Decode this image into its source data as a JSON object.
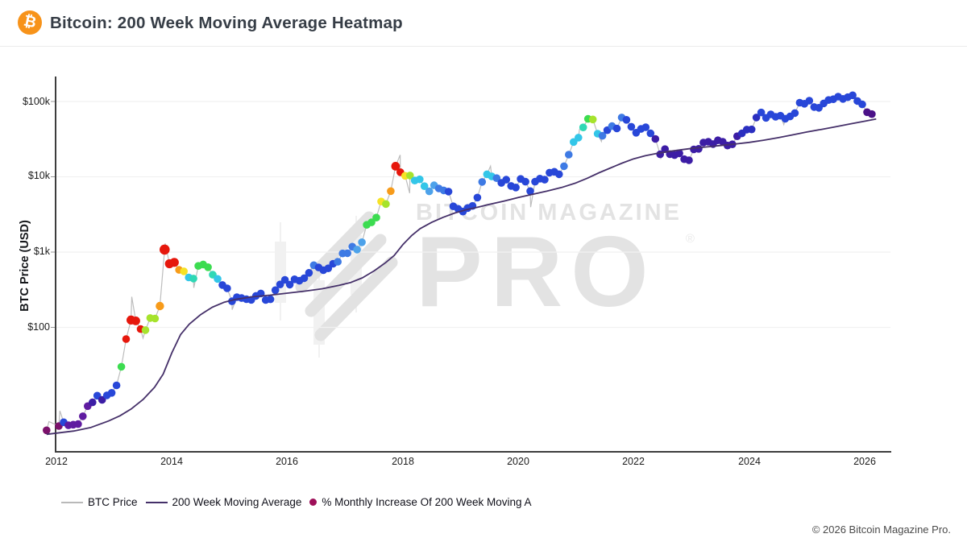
{
  "header": {
    "title": "Bitcoin: 200 Week Moving Average Heatmap",
    "logo_glyph": "₿",
    "brand_color": "#f7931a"
  },
  "watermark": {
    "line1": "BITCOIN MAGAZINE",
    "line2": "PRO",
    "reg": "®"
  },
  "footer": {
    "copyright": "© 2026 Bitcoin Magazine Pro."
  },
  "legend": {
    "items": [
      {
        "label": "BTC Price",
        "type": "line",
        "color": "#b9b9b9"
      },
      {
        "label": "200 Week Moving Average",
        "type": "line",
        "color": "#453069"
      },
      {
        "label": "% Monthly Increase Of 200 Week Moving A",
        "type": "dot",
        "color": "#9e1059"
      }
    ]
  },
  "chart_data": {
    "type": "scatter",
    "title": "Bitcoin: 200 Week Moving Average Heatmap",
    "ylabel": "BTC Price (USD)",
    "y_log": true,
    "grid": "horizontal-faint",
    "x_ticks": [
      "2012",
      "2014",
      "2016",
      "2018",
      "2020",
      "2022",
      "2024",
      "2026"
    ],
    "y_ticks": [
      "$100k",
      "$10k",
      "$1k",
      "$100"
    ],
    "y_tick_values": [
      100000,
      10000,
      1000,
      100
    ],
    "x_range": [
      2011.8,
      2026.45
    ],
    "colors": {
      "axis": "#3d3d3d",
      "grid": "#f1f1f1",
      "tick": "#9a9a9a",
      "btc_line": "#bdbdbd",
      "wma_line": "#453069",
      "palette": {
        "mg": "#7c116b",
        "dp": "#4b1188",
        "pu": "#5f1ba0",
        "in": "#3c1da5",
        "nv": "#2b2fc0",
        "b": "#2847d8",
        "lb": "#3e7ae4",
        "sk": "#4da2ea",
        "cy": "#33c6e8",
        "te": "#2fd8b5",
        "gr": "#3cdc50",
        "yg": "#a6e32c",
        "ye": "#f6e227",
        "or": "#f79b1a",
        "re": "#e6170c"
      }
    },
    "series_note": "btc_monthly tuples = [decimalYear, priceUSD, colorKey, optionalRadius]; color = % monthly increase of 200WMA heatmap",
    "btc_monthly": [
      [
        2011.83,
        4.3,
        "mg"
      ],
      [
        2012.042,
        4.9,
        "mg"
      ],
      [
        2012.125,
        5.5,
        "b"
      ],
      [
        2012.208,
        5.0,
        "pu"
      ],
      [
        2012.292,
        5.1,
        "pu"
      ],
      [
        2012.375,
        5.2,
        "pu"
      ],
      [
        2012.458,
        6.6,
        "pu"
      ],
      [
        2012.542,
        9.0,
        "pu"
      ],
      [
        2012.625,
        10.1,
        "in"
      ],
      [
        2012.708,
        12.4,
        "b"
      ],
      [
        2012.792,
        10.9,
        "in"
      ],
      [
        2012.875,
        12.5,
        "b"
      ],
      [
        2012.958,
        13.5,
        "b"
      ],
      [
        2013.042,
        17,
        "b"
      ],
      [
        2013.125,
        30,
        "gr"
      ],
      [
        2013.208,
        70,
        "re"
      ],
      [
        2013.292,
        125,
        "re",
        5.6
      ],
      [
        2013.375,
        122,
        "re",
        5.4
      ],
      [
        2013.458,
        95,
        "re"
      ],
      [
        2013.542,
        92,
        "yg"
      ],
      [
        2013.625,
        133,
        "yg"
      ],
      [
        2013.708,
        131,
        "yg"
      ],
      [
        2013.792,
        192,
        "or",
        5.2
      ],
      [
        2013.875,
        1080,
        "re",
        6.3
      ],
      [
        2013.958,
        700,
        "re",
        5.6
      ],
      [
        2014.042,
        730,
        "re",
        5.6
      ],
      [
        2014.125,
        580,
        "or"
      ],
      [
        2014.208,
        555,
        "ye"
      ],
      [
        2014.292,
        460,
        "cy"
      ],
      [
        2014.375,
        445,
        "te"
      ],
      [
        2014.458,
        655,
        "gr"
      ],
      [
        2014.542,
        685,
        "gr"
      ],
      [
        2014.625,
        630,
        "gr"
      ],
      [
        2014.708,
        500,
        "te"
      ],
      [
        2014.792,
        440,
        "cy"
      ],
      [
        2014.875,
        365,
        "b"
      ],
      [
        2014.958,
        330,
        "b"
      ],
      [
        2015.042,
        222,
        "b"
      ],
      [
        2015.125,
        252,
        "b"
      ],
      [
        2015.208,
        245,
        "b"
      ],
      [
        2015.292,
        237,
        "b"
      ],
      [
        2015.375,
        232,
        "b"
      ],
      [
        2015.458,
        262,
        "b"
      ],
      [
        2015.542,
        282,
        "b"
      ],
      [
        2015.625,
        231,
        "b"
      ],
      [
        2015.708,
        236,
        "b"
      ],
      [
        2015.792,
        312,
        "b"
      ],
      [
        2015.875,
        372,
        "b"
      ],
      [
        2015.958,
        428,
        "b"
      ],
      [
        2016.042,
        370,
        "b"
      ],
      [
        2016.125,
        435,
        "b"
      ],
      [
        2016.208,
        416,
        "b"
      ],
      [
        2016.292,
        450,
        "b"
      ],
      [
        2016.375,
        530,
        "b"
      ],
      [
        2016.458,
        670,
        "lb"
      ],
      [
        2016.542,
        625,
        "b"
      ],
      [
        2016.625,
        575,
        "b"
      ],
      [
        2016.708,
        608,
        "b"
      ],
      [
        2016.792,
        700,
        "b"
      ],
      [
        2016.875,
        745,
        "lb"
      ],
      [
        2016.958,
        960,
        "lb"
      ],
      [
        2017.042,
        965,
        "lb"
      ],
      [
        2017.125,
        1180,
        "lb"
      ],
      [
        2017.208,
        1080,
        "sk"
      ],
      [
        2017.292,
        1350,
        "sk"
      ],
      [
        2017.375,
        2300,
        "gr"
      ],
      [
        2017.458,
        2480,
        "gr"
      ],
      [
        2017.542,
        2870,
        "gr"
      ],
      [
        2017.625,
        4700,
        "ye"
      ],
      [
        2017.708,
        4350,
        "yg"
      ],
      [
        2017.792,
        6450,
        "or"
      ],
      [
        2017.875,
        13800,
        "re",
        5.4
      ],
      [
        2017.958,
        11500,
        "re"
      ],
      [
        2018.042,
        10300,
        "ye"
      ],
      [
        2018.125,
        10400,
        "yg"
      ],
      [
        2018.208,
        8900,
        "cy"
      ],
      [
        2018.292,
        9250,
        "cy"
      ],
      [
        2018.375,
        7500,
        "cy"
      ],
      [
        2018.458,
        6400,
        "sk"
      ],
      [
        2018.542,
        7700,
        "sk"
      ],
      [
        2018.625,
        7000,
        "lb"
      ],
      [
        2018.708,
        6600,
        "lb"
      ],
      [
        2018.792,
        6350,
        "b"
      ],
      [
        2018.875,
        4050,
        "b"
      ],
      [
        2018.958,
        3750,
        "b"
      ],
      [
        2019.042,
        3450,
        "b"
      ],
      [
        2019.125,
        3850,
        "b"
      ],
      [
        2019.208,
        4100,
        "b"
      ],
      [
        2019.292,
        5300,
        "b"
      ],
      [
        2019.375,
        8550,
        "lb"
      ],
      [
        2019.458,
        10800,
        "cy"
      ],
      [
        2019.542,
        10100,
        "cy"
      ],
      [
        2019.625,
        9600,
        "lb"
      ],
      [
        2019.708,
        8300,
        "b"
      ],
      [
        2019.792,
        9150,
        "b"
      ],
      [
        2019.875,
        7550,
        "b"
      ],
      [
        2019.958,
        7200,
        "b"
      ],
      [
        2020.042,
        9350,
        "b"
      ],
      [
        2020.125,
        8600,
        "b"
      ],
      [
        2020.208,
        6450,
        "b"
      ],
      [
        2020.292,
        8600,
        "b"
      ],
      [
        2020.375,
        9450,
        "b"
      ],
      [
        2020.458,
        9150,
        "b"
      ],
      [
        2020.542,
        11350,
        "b"
      ],
      [
        2020.625,
        11650,
        "b"
      ],
      [
        2020.708,
        10800,
        "b"
      ],
      [
        2020.792,
        13800,
        "lb"
      ],
      [
        2020.875,
        19700,
        "lb"
      ],
      [
        2020.958,
        29000,
        "cy"
      ],
      [
        2021.042,
        33100,
        "cy"
      ],
      [
        2021.125,
        45200,
        "te"
      ],
      [
        2021.208,
        58800,
        "gr"
      ],
      [
        2021.292,
        57800,
        "yg"
      ],
      [
        2021.375,
        37300,
        "cy"
      ],
      [
        2021.458,
        35000,
        "lb"
      ],
      [
        2021.542,
        41500,
        "b"
      ],
      [
        2021.625,
        47100,
        "lb"
      ],
      [
        2021.708,
        43800,
        "b"
      ],
      [
        2021.792,
        61300,
        "lb"
      ],
      [
        2021.875,
        57000,
        "b"
      ],
      [
        2021.958,
        46200,
        "b"
      ],
      [
        2022.042,
        38500,
        "b"
      ],
      [
        2022.125,
        43200,
        "b"
      ],
      [
        2022.208,
        45500,
        "b"
      ],
      [
        2022.292,
        37700,
        "b"
      ],
      [
        2022.375,
        31800,
        "in"
      ],
      [
        2022.458,
        19900,
        "in"
      ],
      [
        2022.542,
        23300,
        "in"
      ],
      [
        2022.625,
        20000,
        "in"
      ],
      [
        2022.708,
        19400,
        "in"
      ],
      [
        2022.792,
        20500,
        "in"
      ],
      [
        2022.875,
        17100,
        "in"
      ],
      [
        2022.958,
        16550,
        "in"
      ],
      [
        2023.042,
        23100,
        "in"
      ],
      [
        2023.125,
        23500,
        "in"
      ],
      [
        2023.208,
        28500,
        "in"
      ],
      [
        2023.292,
        29200,
        "in"
      ],
      [
        2023.375,
        27200,
        "in"
      ],
      [
        2023.458,
        30500,
        "in"
      ],
      [
        2023.542,
        29200,
        "in"
      ],
      [
        2023.625,
        26000,
        "in"
      ],
      [
        2023.708,
        27000,
        "in"
      ],
      [
        2023.792,
        34500,
        "in"
      ],
      [
        2023.875,
        37700,
        "nv"
      ],
      [
        2023.958,
        42300,
        "nv"
      ],
      [
        2024.042,
        42600,
        "nv"
      ],
      [
        2024.125,
        61200,
        "nv"
      ],
      [
        2024.208,
        71300,
        "b"
      ],
      [
        2024.292,
        60600,
        "b"
      ],
      [
        2024.375,
        67500,
        "b"
      ],
      [
        2024.458,
        62700,
        "b"
      ],
      [
        2024.542,
        64600,
        "b"
      ],
      [
        2024.625,
        59000,
        "b"
      ],
      [
        2024.708,
        63300,
        "b"
      ],
      [
        2024.792,
        70200,
        "b"
      ],
      [
        2024.875,
        96400,
        "b"
      ],
      [
        2024.958,
        93400,
        "b"
      ],
      [
        2025.042,
        102400,
        "b"
      ],
      [
        2025.125,
        84400,
        "b"
      ],
      [
        2025.208,
        82500,
        "b"
      ],
      [
        2025.292,
        94200,
        "b"
      ],
      [
        2025.375,
        104600,
        "b"
      ],
      [
        2025.458,
        107200,
        "b"
      ],
      [
        2025.542,
        116000,
        "b"
      ],
      [
        2025.625,
        108300,
        "b"
      ],
      [
        2025.708,
        114000,
        "b"
      ],
      [
        2025.792,
        121000,
        "b"
      ],
      [
        2025.875,
        101500,
        "b"
      ],
      [
        2025.958,
        91500,
        "b"
      ],
      [
        2026.042,
        72000,
        "dp"
      ],
      [
        2026.125,
        68000,
        "dp"
      ]
    ],
    "btc_wicks": [
      [
        2011.87,
        5.6
      ],
      [
        2012.06,
        7.8
      ],
      [
        2013.305,
        255
      ],
      [
        2013.5,
        72
      ],
      [
        2013.885,
        1300
      ],
      [
        2014.38,
        335
      ],
      [
        2015.045,
        172
      ],
      [
        2017.955,
        19500
      ],
      [
        2018.12,
        6050
      ],
      [
        2019.52,
        13800
      ],
      [
        2020.215,
        3950
      ],
      [
        2021.06,
        42500
      ],
      [
        2021.44,
        29500
      ],
      [
        2022.47,
        17600
      ],
      [
        2024.6,
        49500
      ],
      [
        2025.21,
        74500
      ],
      [
        2025.83,
        126500
      ]
    ],
    "wma_line": [
      [
        2011.83,
        3.8
      ],
      [
        2012.3,
        4.2
      ],
      [
        2012.6,
        4.7
      ],
      [
        2012.9,
        5.7
      ],
      [
        2013.1,
        6.7
      ],
      [
        2013.3,
        8.3
      ],
      [
        2013.5,
        11
      ],
      [
        2013.7,
        16
      ],
      [
        2013.85,
        24
      ],
      [
        2014.0,
        46
      ],
      [
        2014.15,
        80
      ],
      [
        2014.3,
        110
      ],
      [
        2014.5,
        148
      ],
      [
        2014.7,
        185
      ],
      [
        2014.9,
        215
      ],
      [
        2015.1,
        235
      ],
      [
        2015.4,
        255
      ],
      [
        2015.7,
        268
      ],
      [
        2016.0,
        285
      ],
      [
        2016.3,
        303
      ],
      [
        2016.6,
        325
      ],
      [
        2016.9,
        362
      ],
      [
        2017.1,
        395
      ],
      [
        2017.3,
        455
      ],
      [
        2017.5,
        560
      ],
      [
        2017.7,
        720
      ],
      [
        2017.85,
        900
      ],
      [
        2018.0,
        1250
      ],
      [
        2018.15,
        1650
      ],
      [
        2018.3,
        2050
      ],
      [
        2018.5,
        2480
      ],
      [
        2018.7,
        2900
      ],
      [
        2018.9,
        3300
      ],
      [
        2019.1,
        3650
      ],
      [
        2019.3,
        3950
      ],
      [
        2019.5,
        4300
      ],
      [
        2019.75,
        4750
      ],
      [
        2020.0,
        5300
      ],
      [
        2020.25,
        5850
      ],
      [
        2020.5,
        6450
      ],
      [
        2020.75,
        7200
      ],
      [
        2021.0,
        8300
      ],
      [
        2021.2,
        9600
      ],
      [
        2021.4,
        11300
      ],
      [
        2021.6,
        13100
      ],
      [
        2021.8,
        15200
      ],
      [
        2022.0,
        17300
      ],
      [
        2022.2,
        19000
      ],
      [
        2022.4,
        20400
      ],
      [
        2022.6,
        21600
      ],
      [
        2022.8,
        22700
      ],
      [
        2023.0,
        23800
      ],
      [
        2023.25,
        24900
      ],
      [
        2023.5,
        26000
      ],
      [
        2023.75,
        27200
      ],
      [
        2024.0,
        28600
      ],
      [
        2024.25,
        30600
      ],
      [
        2024.5,
        33000
      ],
      [
        2024.75,
        36000
      ],
      [
        2025.0,
        39300
      ],
      [
        2025.25,
        42600
      ],
      [
        2025.5,
        46200
      ],
      [
        2025.75,
        50300
      ],
      [
        2026.0,
        54700
      ],
      [
        2026.2,
        58500
      ]
    ]
  }
}
